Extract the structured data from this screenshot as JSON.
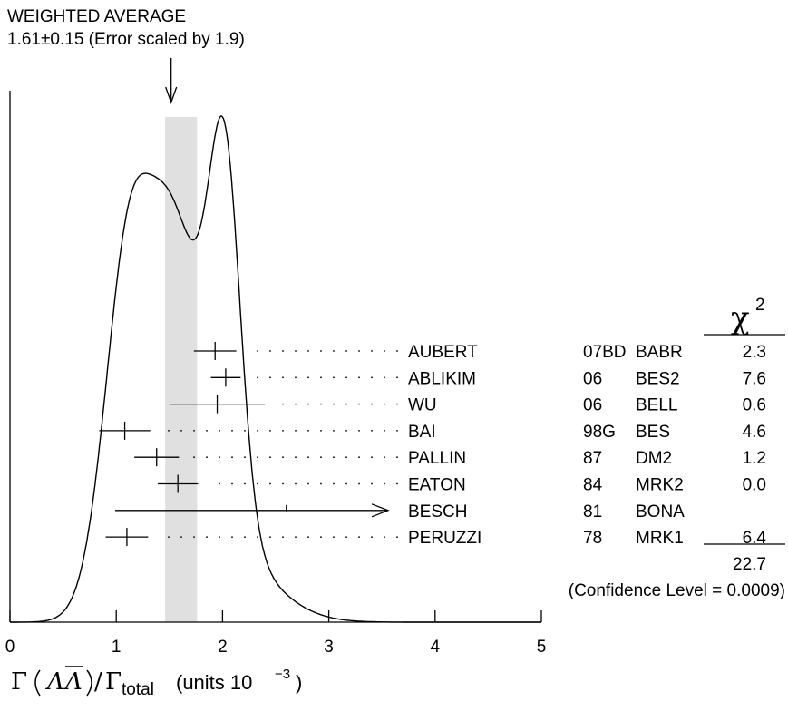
{
  "chart_data": {
    "type": "ideogram",
    "header": {
      "line1": "WEIGHTED AVERAGE",
      "line2": "1.61±0.15 (Error scaled by 1.9)"
    },
    "weighted_average": {
      "value": 1.61,
      "error": 0.15,
      "scale_factor": 1.9
    },
    "xlim": [
      0,
      5
    ],
    "x_ticks": [
      0,
      1,
      2,
      3,
      4,
      5
    ],
    "x_tick_labels": [
      "0",
      "1",
      "2",
      "3",
      "4",
      "5"
    ],
    "xlabel": "Γ(ΛΛ̄)/Γtotal (units 10^−3)",
    "xlabel_parts": {
      "gamma": "Γ",
      "lambda": "Λ",
      "lambda_bar": "Λ",
      "slash": "/",
      "gamma2": "Γ",
      "sub": "total",
      "units": "(units 10",
      "exp": "−3",
      "close": ")"
    },
    "chi2_header": "χ",
    "chi2_exp": "2",
    "measurements": [
      {
        "author": "AUBERT",
        "year": "07BD",
        "experiment": "BABR",
        "value": 1.93,
        "error": 0.2,
        "chi2": "2.3"
      },
      {
        "author": "ABLIKIM",
        "year": "06",
        "experiment": "BES2",
        "value": 2.03,
        "error": 0.14,
        "chi2": "7.6"
      },
      {
        "author": "WU",
        "year": "06",
        "experiment": "BELL",
        "value": 1.95,
        "error": 0.45,
        "chi2": "0.6"
      },
      {
        "author": "BAI",
        "year": "98G",
        "experiment": "BES",
        "value": 1.08,
        "error": 0.24,
        "chi2": "4.6"
      },
      {
        "author": "PALLIN",
        "year": "87",
        "experiment": "DM2",
        "value": 1.38,
        "error": 0.21,
        "chi2": "1.2"
      },
      {
        "author": "EATON",
        "year": "84",
        "experiment": "MRK2",
        "value": 1.58,
        "error": 0.19,
        "chi2": "0.0"
      },
      {
        "author": "BESCH",
        "year": "81",
        "experiment": "BONA",
        "value": 2.6,
        "error": null,
        "chi2": "",
        "arrow": true
      },
      {
        "author": "PERUZZI",
        "year": "78",
        "experiment": "MRK1",
        "value": 1.1,
        "error": 0.2,
        "chi2": "6.4"
      }
    ],
    "chi2_total": "22.7",
    "confidence_level": "(Confidence Level = 0.0009)"
  }
}
